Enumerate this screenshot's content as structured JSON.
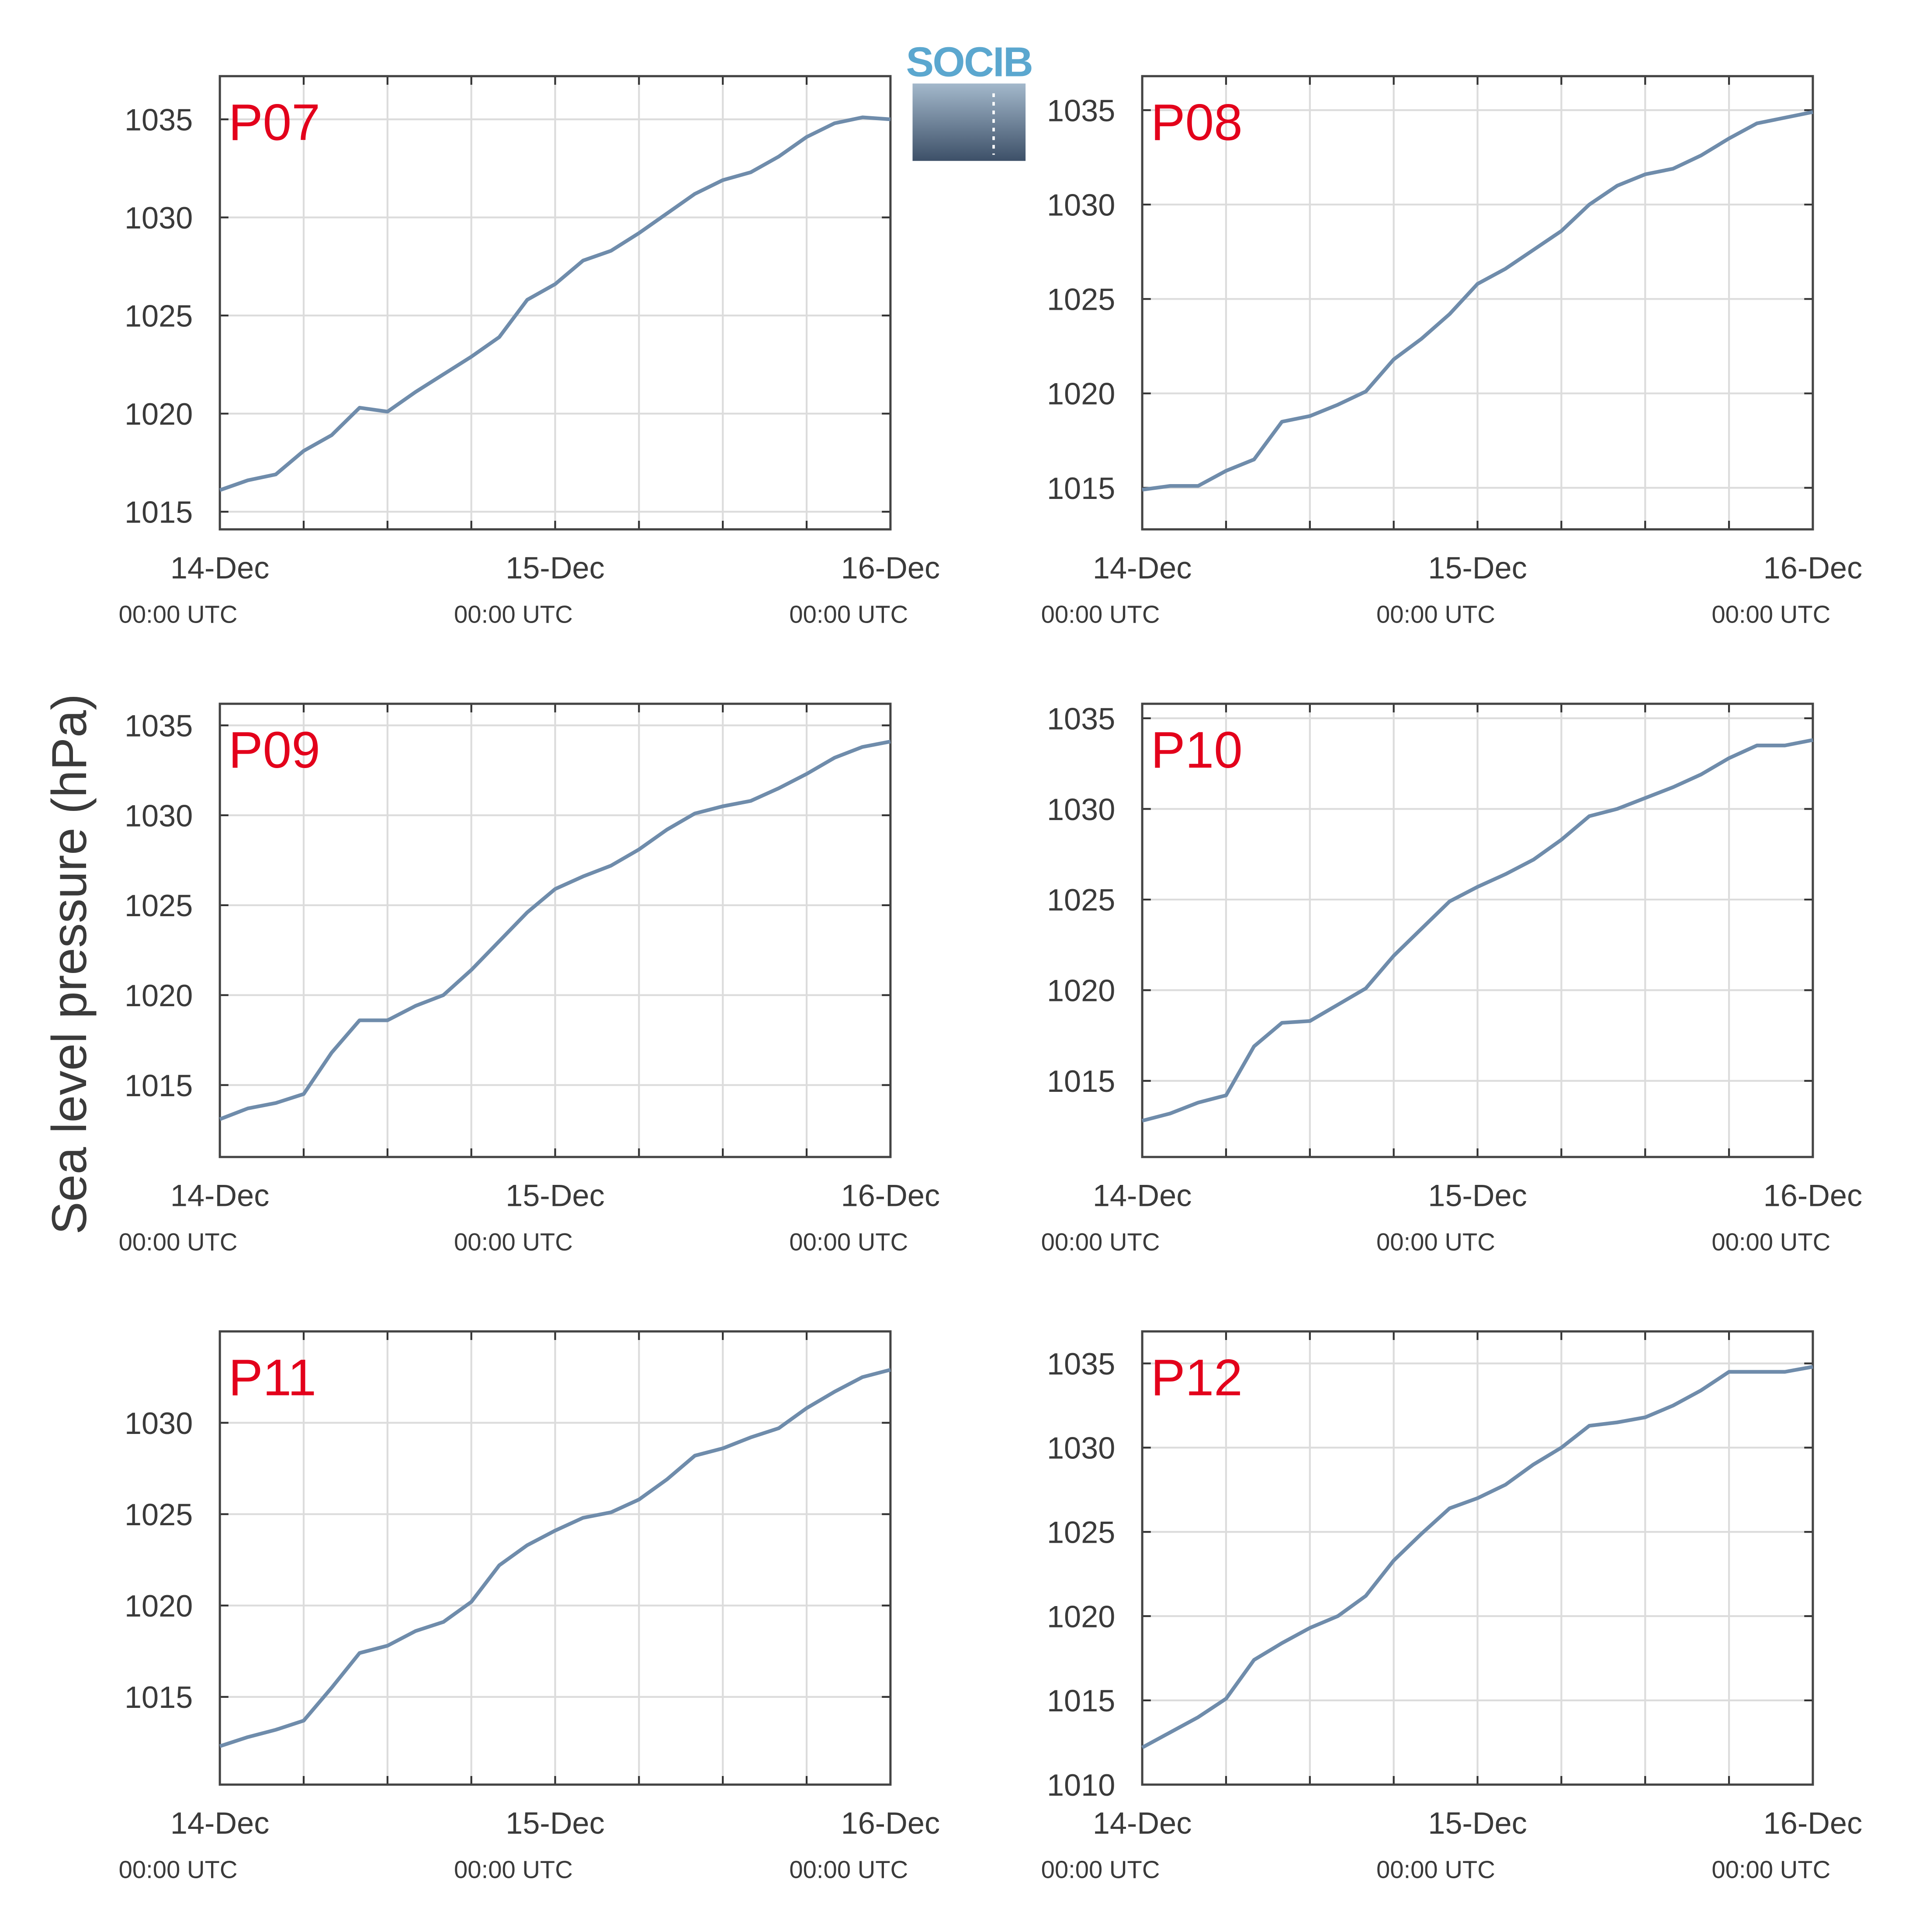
{
  "ylabel": "Sea level pressure (hPa)",
  "logo": "SOCIB",
  "chart_data": [
    {
      "type": "line",
      "title": "P07",
      "color": "#6f8cab",
      "grid": true,
      "x": [
        0,
        2,
        4,
        6,
        8,
        10,
        12,
        14,
        16,
        18,
        20,
        22,
        24,
        26,
        28,
        30,
        32,
        34,
        36,
        38,
        40,
        42,
        44,
        46,
        48
      ],
      "values": [
        1016.1,
        1016.6,
        1016.9,
        1018.1,
        1018.9,
        1020.3,
        1020.1,
        1021.1,
        1022.0,
        1022.9,
        1023.9,
        1025.8,
        1026.6,
        1027.8,
        1028.3,
        1029.2,
        1030.2,
        1031.2,
        1031.9,
        1032.3,
        1033.1,
        1034.1,
        1034.8,
        1035.1,
        1035.0
      ],
      "xlim": [
        0,
        48
      ],
      "xticks": [
        {
          "value": 0,
          "label": [
            "14-Dec",
            "00:00 UTC"
          ]
        },
        {
          "value": 24,
          "label": [
            "15-Dec",
            "00:00 UTC"
          ]
        },
        {
          "value": 48,
          "label": [
            "16-Dec",
            "00:00 UTC"
          ]
        }
      ],
      "xminorticks": [
        6,
        12,
        18,
        30,
        36,
        42
      ],
      "ylim": [
        1014.1,
        1037.2
      ],
      "yticks": [
        1015,
        1020,
        1025,
        1030,
        1035
      ]
    },
    {
      "type": "line",
      "title": "P08",
      "color": "#6f8cab",
      "grid": true,
      "x": [
        0,
        2,
        4,
        6,
        8,
        10,
        12,
        14,
        16,
        18,
        20,
        22,
        24,
        26,
        28,
        30,
        32,
        34,
        36,
        38,
        40,
        42,
        44,
        46,
        48
      ],
      "values": [
        1014.9,
        1015.1,
        1015.1,
        1015.9,
        1016.5,
        1018.5,
        1018.8,
        1019.4,
        1020.1,
        1021.8,
        1022.9,
        1024.2,
        1025.8,
        1026.6,
        1027.6,
        1028.6,
        1030.0,
        1031.0,
        1031.6,
        1031.9,
        1032.6,
        1033.5,
        1034.3,
        1034.6,
        1034.9
      ],
      "xlim": [
        0,
        48
      ],
      "xticks": [
        {
          "value": 0,
          "label": [
            "14-Dec",
            "00:00 UTC"
          ]
        },
        {
          "value": 24,
          "label": [
            "15-Dec",
            "00:00 UTC"
          ]
        },
        {
          "value": 48,
          "label": [
            "16-Dec",
            "00:00 UTC"
          ]
        }
      ],
      "xminorticks": [
        6,
        12,
        18,
        30,
        36,
        42
      ],
      "ylim": [
        1012.8,
        1036.8
      ],
      "yticks": [
        1015,
        1020,
        1025,
        1030,
        1035
      ]
    },
    {
      "type": "line",
      "title": "P09",
      "color": "#6f8cab",
      "grid": true,
      "x": [
        0,
        2,
        4,
        6,
        8,
        10,
        12,
        14,
        16,
        18,
        20,
        22,
        24,
        26,
        28,
        30,
        32,
        34,
        36,
        38,
        40,
        42,
        44,
        46,
        48
      ],
      "values": [
        1013.1,
        1013.7,
        1014.0,
        1014.5,
        1016.8,
        1018.6,
        1018.6,
        1019.4,
        1020.0,
        1021.4,
        1023.0,
        1024.6,
        1025.9,
        1026.6,
        1027.2,
        1028.1,
        1029.2,
        1030.1,
        1030.5,
        1030.8,
        1031.5,
        1032.3,
        1033.2,
        1033.8,
        1034.1
      ],
      "xlim": [
        0,
        48
      ],
      "xticks": [
        {
          "value": 0,
          "label": [
            "14-Dec",
            "00:00 UTC"
          ]
        },
        {
          "value": 24,
          "label": [
            "15-Dec",
            "00:00 UTC"
          ]
        },
        {
          "value": 48,
          "label": [
            "16-Dec",
            "00:00 UTC"
          ]
        }
      ],
      "xminorticks": [
        6,
        12,
        18,
        30,
        36,
        42
      ],
      "ylim": [
        1011.0,
        1036.2
      ],
      "yticks": [
        1015,
        1020,
        1025,
        1030,
        1035
      ]
    },
    {
      "type": "line",
      "title": "P10",
      "color": "#6f8cab",
      "grid": true,
      "x": [
        0,
        2,
        4,
        6,
        8,
        10,
        12,
        14,
        16,
        18,
        20,
        22,
        24,
        26,
        28,
        30,
        32,
        34,
        36,
        38,
        40,
        42,
        44,
        46,
        48
      ],
      "values": [
        1012.8,
        1013.2,
        1013.8,
        1014.2,
        1016.9,
        1018.2,
        1018.3,
        1019.2,
        1020.1,
        1021.9,
        1023.4,
        1024.9,
        1025.7,
        1026.4,
        1027.2,
        1028.3,
        1029.6,
        1030.0,
        1030.6,
        1031.2,
        1031.9,
        1032.8,
        1033.5,
        1033.5,
        1033.8
      ],
      "xlim": [
        0,
        48
      ],
      "xticks": [
        {
          "value": 0,
          "label": [
            "14-Dec",
            "00:00 UTC"
          ]
        },
        {
          "value": 24,
          "label": [
            "15-Dec",
            "00:00 UTC"
          ]
        },
        {
          "value": 48,
          "label": [
            "16-Dec",
            "00:00 UTC"
          ]
        }
      ],
      "xminorticks": [
        6,
        12,
        18,
        30,
        36,
        42
      ],
      "ylim": [
        1010.8,
        1035.8
      ],
      "yticks": [
        1015,
        1020,
        1025,
        1030,
        1035
      ]
    },
    {
      "type": "line",
      "title": "P11",
      "color": "#6f8cab",
      "grid": true,
      "x": [
        0,
        2,
        4,
        6,
        8,
        10,
        12,
        14,
        16,
        18,
        20,
        22,
        24,
        26,
        28,
        30,
        32,
        34,
        36,
        38,
        40,
        42,
        44,
        46,
        48
      ],
      "values": [
        1012.3,
        1012.8,
        1013.2,
        1013.7,
        1015.5,
        1017.4,
        1017.8,
        1018.6,
        1019.1,
        1020.2,
        1022.2,
        1023.3,
        1024.1,
        1024.8,
        1025.1,
        1025.8,
        1026.9,
        1028.2,
        1028.6,
        1029.2,
        1029.7,
        1030.8,
        1031.7,
        1032.5,
        1032.9
      ],
      "xlim": [
        0,
        48
      ],
      "xticks": [
        {
          "value": 0,
          "label": [
            "14-Dec",
            "00:00 UTC"
          ]
        },
        {
          "value": 24,
          "label": [
            "15-Dec",
            "00:00 UTC"
          ]
        },
        {
          "value": 48,
          "label": [
            "16-Dec",
            "00:00 UTC"
          ]
        }
      ],
      "xminorticks": [
        6,
        12,
        18,
        30,
        36,
        42
      ],
      "ylim": [
        1010.2,
        1035.0
      ],
      "yticks": [
        1015,
        1020,
        1025,
        1030
      ]
    },
    {
      "type": "line",
      "title": "P12",
      "color": "#6f8cab",
      "grid": true,
      "x": [
        0,
        2,
        4,
        6,
        8,
        10,
        12,
        14,
        16,
        18,
        20,
        22,
        24,
        26,
        28,
        30,
        32,
        34,
        36,
        38,
        40,
        42,
        44,
        46,
        48
      ],
      "values": [
        1012.2,
        1013.1,
        1014.0,
        1015.1,
        1017.4,
        1018.4,
        1019.3,
        1020.0,
        1021.2,
        1023.3,
        1024.9,
        1026.4,
        1027.0,
        1027.8,
        1029.0,
        1030.0,
        1031.3,
        1031.5,
        1031.8,
        1032.5,
        1033.4,
        1034.5,
        1034.5,
        1034.5,
        1034.8
      ],
      "xlim": [
        0,
        48
      ],
      "xticks": [
        {
          "value": 0,
          "label": [
            "14-Dec",
            "00:00 UTC"
          ]
        },
        {
          "value": 24,
          "label": [
            "15-Dec",
            "00:00 UTC"
          ]
        },
        {
          "value": 48,
          "label": [
            "16-Dec",
            "00:00 UTC"
          ]
        }
      ],
      "xminorticks": [
        6,
        12,
        18,
        30,
        36,
        42
      ],
      "ylim": [
        1010.0,
        1036.9
      ],
      "yticks": [
        1010,
        1015,
        1020,
        1025,
        1030,
        1035
      ]
    }
  ]
}
